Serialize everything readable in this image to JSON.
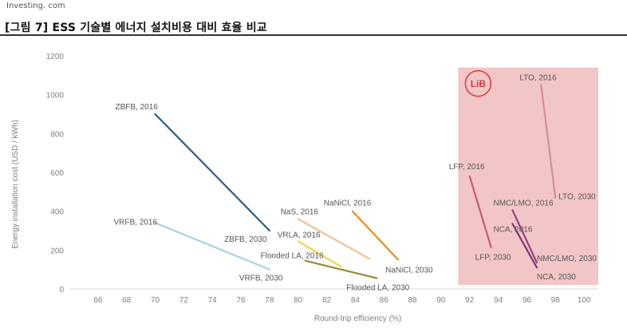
{
  "header": {
    "subtitle": "Investing. com",
    "title": "[그림 7] ESS 기술별 에너지 설치비용 대비 효율 비교"
  },
  "colors": {
    "lib_region": "#f2c6c6",
    "lib_circle": "#d93a3a",
    "axis_text": "#7f7f7f",
    "axis_line": "#d9d9d9"
  },
  "chart_data": {
    "type": "line",
    "xlabel": "Round-trip efficiency (%)",
    "ylabel": "Energy installation cost (USD / kWh)",
    "xlim": [
      64,
      101
    ],
    "ylim": [
      0,
      1200
    ],
    "x_ticks": [
      66,
      68,
      70,
      72,
      74,
      76,
      78,
      80,
      82,
      84,
      86,
      88,
      90,
      92,
      94,
      96,
      98,
      100
    ],
    "y_ticks": [
      0,
      200,
      400,
      600,
      800,
      1000,
      1200
    ],
    "grid": false,
    "highlight_region": {
      "label": "LiB",
      "x": [
        91.2,
        101.0
      ],
      "y": [
        20,
        1140
      ]
    },
    "series": [
      {
        "name": "ZBFB",
        "color": "#2e5a87",
        "points": [
          {
            "x": 70,
            "y": 900,
            "label": "ZBFB, 2016"
          },
          {
            "x": 78,
            "y": 300,
            "label": "ZBFB, 2030"
          }
        ]
      },
      {
        "name": "VRFB",
        "color": "#a9d0e6",
        "points": [
          {
            "x": 70,
            "y": 340,
            "label": "VRFB, 2016"
          },
          {
            "x": 78,
            "y": 100,
            "label": "VRFB, 2030"
          }
        ]
      },
      {
        "name": "NaS",
        "color": "#f2c08e",
        "points": [
          {
            "x": 80,
            "y": 360,
            "label": "NaS, 2016"
          },
          {
            "x": 85,
            "y": 155,
            "label": ""
          }
        ]
      },
      {
        "name": "VRLA",
        "color": "#f5d24a",
        "points": [
          {
            "x": 80,
            "y": 245,
            "label": "VRLA, 2016"
          },
          {
            "x": 83,
            "y": 115,
            "label": ""
          }
        ]
      },
      {
        "name": "NaNiCl",
        "color": "#e8901c",
        "points": [
          {
            "x": 83.8,
            "y": 400,
            "label": "NaNiCl, 2016"
          },
          {
            "x": 87,
            "y": 150,
            "label": "NaNiCl, 2030"
          }
        ]
      },
      {
        "name": "Flooded LA",
        "color": "#9a8a32",
        "points": [
          {
            "x": 80.5,
            "y": 145,
            "label": "Flooded LA, 2016"
          },
          {
            "x": 85.5,
            "y": 55,
            "label": "Flooded LA, 2030"
          }
        ]
      },
      {
        "name": "LTO",
        "color": "#d88a9c",
        "points": [
          {
            "x": 97,
            "y": 1050,
            "label": "LTO, 2016"
          },
          {
            "x": 98,
            "y": 470,
            "label": "LTO, 2030"
          }
        ]
      },
      {
        "name": "LFP",
        "color": "#c15a7e",
        "points": [
          {
            "x": 92,
            "y": 580,
            "label": "LFP, 2016"
          },
          {
            "x": 93.5,
            "y": 215,
            "label": "LFP, 2030"
          }
        ]
      },
      {
        "name": "NMC/LMO",
        "color": "#9c3d86",
        "points": [
          {
            "x": 95,
            "y": 405,
            "label": "NMC/LMO, 2016"
          },
          {
            "x": 96.7,
            "y": 135,
            "label": "NMC/LMO, 2030"
          }
        ]
      },
      {
        "name": "NCA",
        "color": "#6b3a78",
        "points": [
          {
            "x": 95,
            "y": 335,
            "label": "NCA, 2016"
          },
          {
            "x": 96.7,
            "y": 110,
            "label": "NCA, 2030"
          }
        ]
      }
    ]
  }
}
